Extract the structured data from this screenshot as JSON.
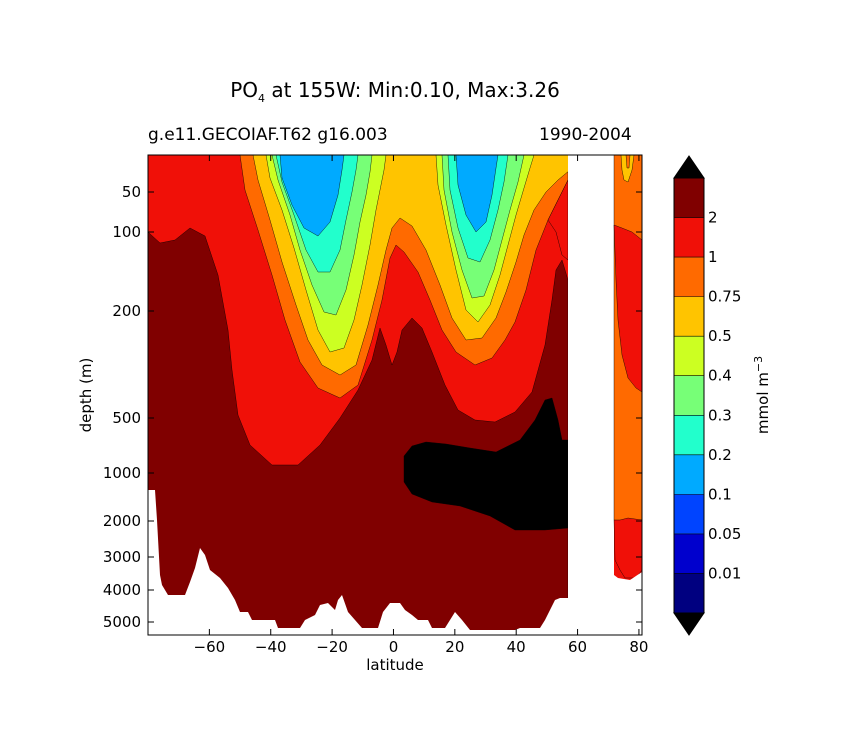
{
  "title": {
    "prefix": "PO",
    "subscript": "4",
    "suffix": "  at 155W: Min:0.10, Max:3.26"
  },
  "subtitle_left": "g.e11.GECOIAF.T62 g16.003",
  "subtitle_right": "1990-2004",
  "colorbar": {
    "label_prefix": "mmol m",
    "label_sup": "−3",
    "levels": [
      "0.01",
      "0.05",
      "0.1",
      "0.2",
      "0.3",
      "0.4",
      "0.5",
      "0.75",
      "1",
      "2"
    ],
    "colors": [
      "#000080",
      "#0000cd",
      "#0044ff",
      "#00aaff",
      "#22ffcc",
      "#77ff77",
      "#ccff22",
      "#ffc400",
      "#ff6a00",
      "#f01008",
      "#800000"
    ],
    "extend_colors": {
      "under": "#000000",
      "over": "#000000"
    }
  },
  "chart_data": {
    "type": "heatmap",
    "title": "PO4 at 155W: Min:0.10, Max:3.26",
    "subtitle_left": "g.e11.GECOIAF.T62 g16.003",
    "subtitle_right": "1990-2004",
    "xlabel": "latitude",
    "ylabel": "depth (m)",
    "colorbar_label": "mmol m^-3",
    "xlim": [
      -80,
      81
    ],
    "ylim": [
      5400,
      10
    ],
    "yscale": "nonlinear (depth)",
    "xticks": [
      -60,
      -40,
      -20,
      0,
      20,
      40,
      60,
      80
    ],
    "yticks": [
      50,
      100,
      200,
      500,
      1000,
      2000,
      3000,
      4000,
      5000
    ],
    "min": 0.1,
    "max": 3.26,
    "land_mask": "white",
    "field_colors": {
      "deep": "#800000",
      "bg": "#f01008",
      "orange": "#ff6a00",
      "yellow": "#ffc400",
      "lime": "#ccff22",
      "green": "#77ff77",
      "cyan": "#22ffcc",
      "lightblue": "#00aaff",
      "black": "#000000"
    }
  }
}
